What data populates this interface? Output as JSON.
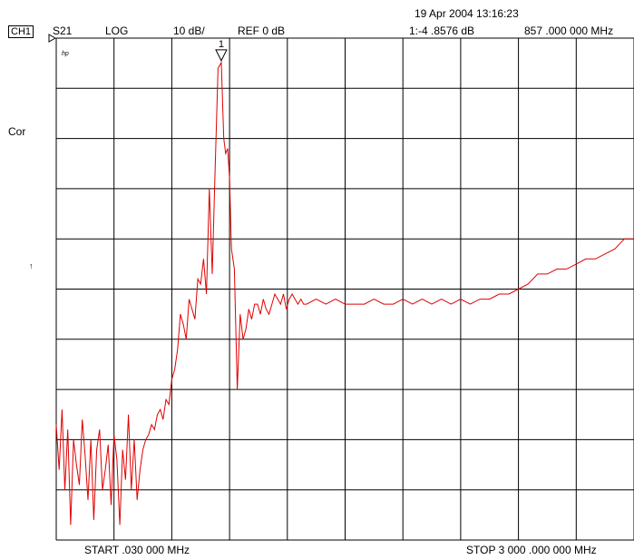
{
  "header": {
    "channel": "CH1",
    "measurement": "S21",
    "format": "LOG",
    "scale": "10 dB/",
    "reference": "REF 0 dB",
    "datetime": "19 Apr 2004  13:16:23",
    "marker_readout": "1:-4 .8576  dB",
    "marker_frequency": "857 .000  000  MHz"
  },
  "side": {
    "hp_mark": "hp",
    "correction": "Cor",
    "arrow": "↑"
  },
  "footer": {
    "start": "START   .030  000  MHz",
    "stop": "STOP 3 000 .000  000  MHz"
  },
  "marker": {
    "label": "1",
    "freq_mhz": 857,
    "value_db": -4.8576
  },
  "colors": {
    "trace": "#e00000",
    "grid": "#000000"
  },
  "chart_data": {
    "type": "line",
    "title": "",
    "xlabel": "",
    "ylabel": "",
    "xlim": [
      0.03,
      3000
    ],
    "ylim": [
      -100,
      0
    ],
    "grid": true,
    "grid_divisions": {
      "x": 10,
      "y": 10
    },
    "series": [
      {
        "x": [
          0.03,
          15,
          30,
          45,
          60,
          75,
          90,
          105,
          120,
          135,
          150,
          165,
          180,
          195,
          210,
          225,
          240,
          255,
          270,
          285,
          300,
          315,
          330,
          345,
          360,
          375,
          390,
          405,
          420,
          435,
          450,
          465,
          480,
          495,
          510,
          525,
          540,
          555,
          570,
          585,
          600,
          615,
          630,
          645,
          660,
          675,
          690,
          705,
          720,
          735,
          750,
          765,
          780,
          795,
          810,
          825,
          840,
          857,
          870,
          880,
          890,
          900,
          910,
          925,
          940,
          955,
          970,
          985,
          1000,
          1015,
          1030,
          1045,
          1060,
          1075,
          1090,
          1105,
          1120,
          1135,
          1150,
          1165,
          1180,
          1195,
          1210,
          1225,
          1240,
          1255,
          1270,
          1285,
          1300,
          1350,
          1400,
          1450,
          1500,
          1550,
          1600,
          1650,
          1700,
          1750,
          1800,
          1850,
          1900,
          1950,
          2000,
          2050,
          2100,
          2150,
          2200,
          2250,
          2300,
          2350,
          2400,
          2450,
          2500,
          2550,
          2600,
          2650,
          2700,
          2750,
          2800,
          2850,
          2900,
          2950,
          3000
        ],
        "y": [
          -77,
          -86,
          -74,
          -90,
          -78,
          -97,
          -80,
          -85,
          -89,
          -76,
          -83,
          -92,
          -80,
          -96,
          -82,
          -78,
          -90,
          -86,
          -81,
          -93,
          -79,
          -84,
          -97,
          -82,
          -88,
          -75,
          -90,
          -80,
          -92,
          -86,
          -82,
          -80,
          -79,
          -77,
          -78,
          -75,
          -74,
          -76,
          -72,
          -73,
          -68,
          -66,
          -62,
          -55,
          -57,
          -60,
          -52,
          -54,
          -56,
          -48,
          -49,
          -44,
          -51,
          -30,
          -47,
          -26,
          -6,
          -4.8576,
          -20,
          -23,
          -22,
          -28,
          -42,
          -46,
          -70,
          -55,
          -60,
          -58,
          -54,
          -56,
          -53,
          -53,
          -55,
          -52,
          -54,
          -55,
          -53,
          -51,
          -52,
          -53,
          -51,
          -54,
          -52,
          -51,
          -52,
          -53,
          -52,
          -53,
          -53,
          -52,
          -53,
          -52,
          -53,
          -53,
          -53,
          -52,
          -53,
          -53,
          -52,
          -53,
          -52,
          -53,
          -52,
          -53,
          -52,
          -53,
          -52,
          -52,
          -51,
          -51,
          -50,
          -49,
          -47,
          -47,
          -46,
          -46,
          -45,
          -44,
          -44,
          -43,
          -42,
          -40,
          -40
        ]
      }
    ]
  }
}
